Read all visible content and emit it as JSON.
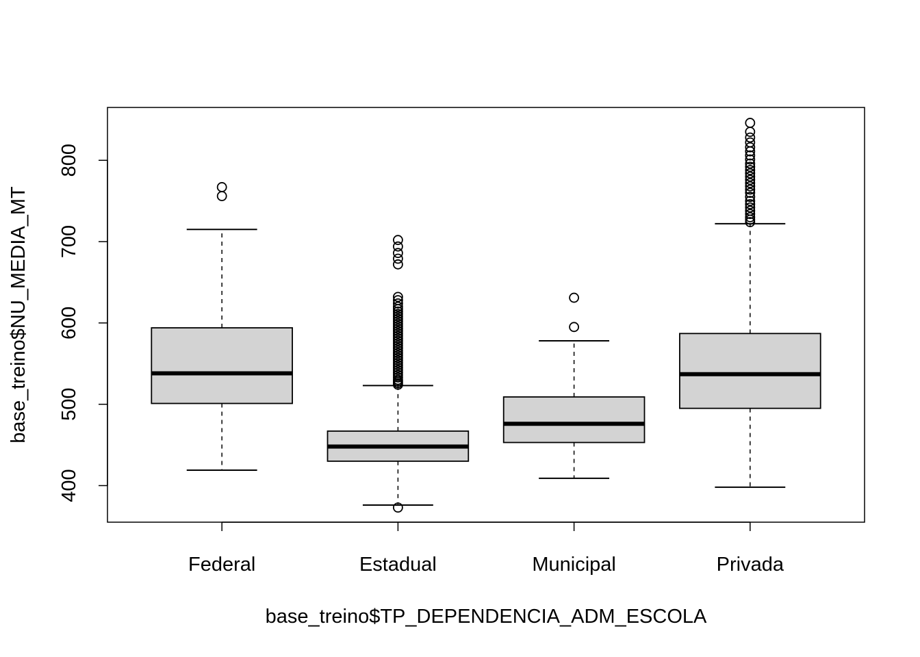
{
  "chart_data": {
    "type": "boxplot",
    "xlabel": "base_treino$TP_DEPENDENCIA_ADM_ESCOLA",
    "ylabel": "base_treino$NU_MEDIA_MT",
    "ylim": [
      355,
      865
    ],
    "yticks": [
      400,
      500,
      600,
      700,
      800
    ],
    "categories": [
      "Federal",
      "Estadual",
      "Municipal",
      "Privada"
    ],
    "boxes": [
      {
        "name": "Federal",
        "whisker_low": 419,
        "q1": 501,
        "median": 538,
        "q3": 594,
        "whisker_high": 715,
        "outliers": [
          756,
          767
        ]
      },
      {
        "name": "Estadual",
        "whisker_low": 376,
        "q1": 430,
        "median": 448,
        "q3": 467,
        "whisker_high": 523,
        "outliers": [
          373,
          524,
          526,
          528,
          530,
          533,
          536,
          539,
          542,
          545,
          548,
          551,
          554,
          557,
          560,
          563,
          566,
          569,
          572,
          575,
          578,
          581,
          584,
          587,
          590,
          593,
          596,
          599,
          602,
          605,
          608,
          611,
          614,
          617,
          620,
          624,
          628,
          632,
          672,
          679,
          686,
          694,
          702
        ]
      },
      {
        "name": "Municipal",
        "whisker_low": 409,
        "q1": 453,
        "median": 476,
        "q3": 509,
        "whisker_high": 578,
        "outliers": [
          595,
          631
        ]
      },
      {
        "name": "Privada",
        "whisker_low": 398,
        "q1": 495,
        "median": 537,
        "q3": 587,
        "whisker_high": 722,
        "outliers": [
          724,
          727,
          730,
          734,
          738,
          742,
          746,
          750,
          755,
          760,
          764,
          768,
          772,
          776,
          780,
          784,
          788,
          792,
          796,
          801,
          806,
          811,
          816,
          822,
          828,
          835,
          846
        ]
      }
    ],
    "colors": {
      "box_fill": "#d3d3d3",
      "stroke": "#000000"
    }
  }
}
